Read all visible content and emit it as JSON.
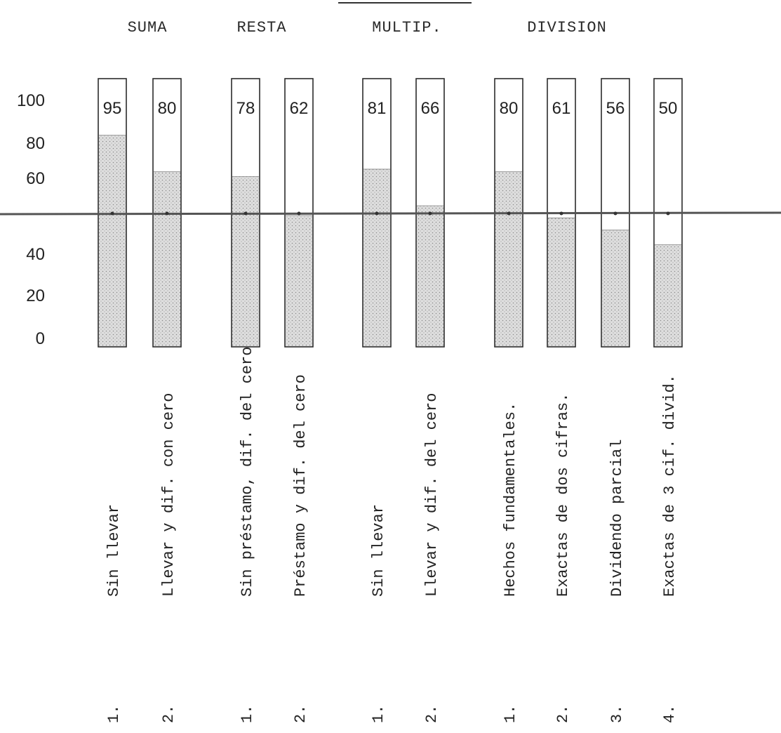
{
  "chart_data": {
    "type": "bar",
    "title": "",
    "xlabel": "",
    "ylabel": "",
    "ylim": [
      0,
      100
    ],
    "y_ticks": [
      "0",
      "20",
      "40",
      "60",
      "80",
      "100"
    ],
    "reference_line": 50,
    "groups": [
      {
        "name": "SUMA",
        "bars": [
          {
            "number": "1.",
            "label": "Sin llevar",
            "value": 95,
            "value_label": "95"
          },
          {
            "number": "2.",
            "label": "Llevar y dif. con cero",
            "value": 80,
            "value_label": "80"
          }
        ]
      },
      {
        "name": "RESTA",
        "bars": [
          {
            "number": "1.",
            "label": "Sin préstamo, dif. del cero",
            "value": 78,
            "value_label": "78"
          },
          {
            "number": "2.",
            "label": "Préstamo y dif. del cero",
            "value": 62,
            "value_label": "62"
          }
        ]
      },
      {
        "name": "MULTIP.",
        "bars": [
          {
            "number": "1.",
            "label": "Sin llevar",
            "value": 81,
            "value_label": "81"
          },
          {
            "number": "2.",
            "label": "Llevar y dif. del cero",
            "value": 66,
            "value_label": "66"
          }
        ]
      },
      {
        "name": "DIVISION",
        "bars": [
          {
            "number": "1.",
            "label": "Hechos fundamentales.",
            "value": 80,
            "value_label": "80"
          },
          {
            "number": "2.",
            "label": "Exactas de dos cifras.",
            "value": 61,
            "value_label": "61"
          },
          {
            "number": "3.",
            "label": "Dividendo parcial",
            "value": 56,
            "value_label": "56"
          },
          {
            "number": "4.",
            "label": "Exactas de 3 cif. divid.",
            "value": 50,
            "value_label": "50"
          }
        ]
      }
    ],
    "colors": {
      "fill": "#d9d9d9",
      "stroke": "#2b2b2b",
      "reference_line": "#555555"
    }
  }
}
